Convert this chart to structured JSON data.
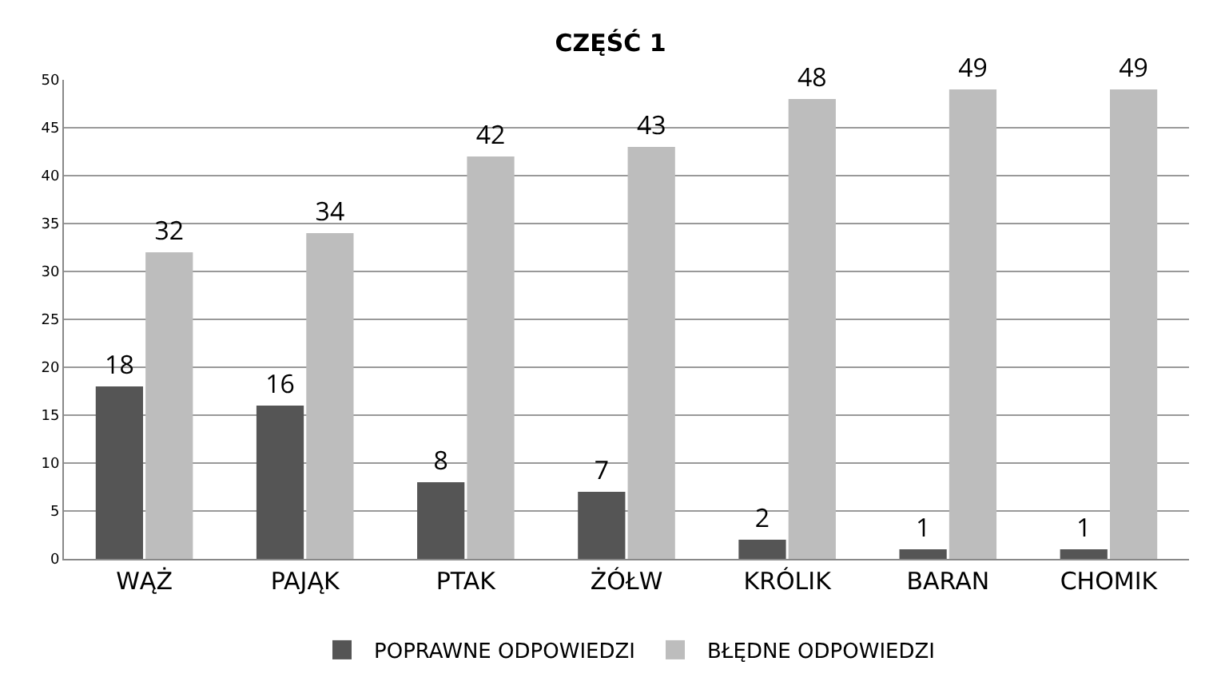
{
  "chart_data": {
    "type": "bar",
    "title": "CZĘŚĆ 1",
    "categories": [
      "WĄŻ",
      "PAJĄK",
      "PTAK",
      "ŻÓŁW",
      "KRÓLIK",
      "BARAN",
      "CHOMIK"
    ],
    "series": [
      {
        "name": "POPRAWNE ODPOWIEDZI",
        "color": "#555555",
        "values": [
          18,
          16,
          8,
          7,
          2,
          1,
          1
        ]
      },
      {
        "name": "BŁĘDNE ODPOWIEDZI",
        "color": "#bdbdbd",
        "values": [
          32,
          34,
          42,
          43,
          48,
          49,
          49
        ]
      }
    ],
    "ylim": [
      0,
      50
    ],
    "yticks": [
      0,
      5,
      10,
      15,
      20,
      25,
      30,
      35,
      40,
      45,
      50
    ],
    "grid": "y",
    "legend": "bottom",
    "data_labels": true
  }
}
